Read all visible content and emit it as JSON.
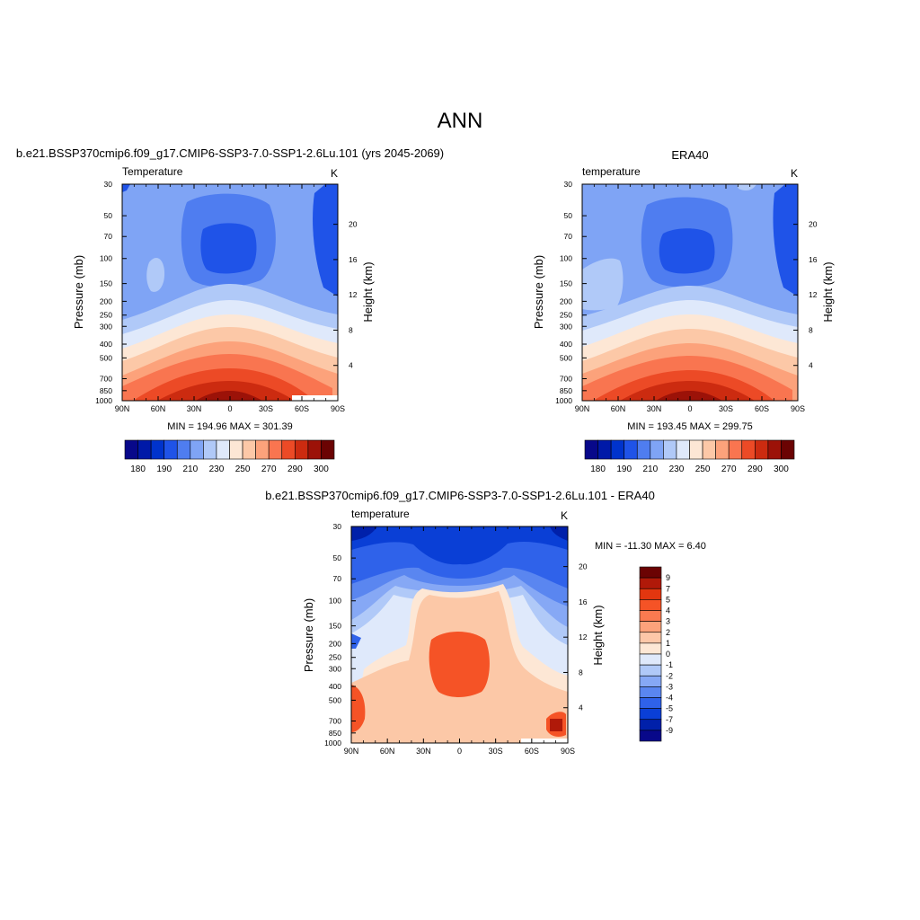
{
  "main_title": "ANN",
  "chart_data": [
    {
      "type": "heatmap",
      "id": "model",
      "title": "b.e21.BSSP370cmip6.f09_g17.CMIP6-SSP3-7.0-SSP1-2.6Lu.101 (yrs 2045-2069)",
      "left_label": "Temperature",
      "unit": "K",
      "ylabel": "Pressure (mb)",
      "ylabel_right": "Height (km)",
      "x_ticks": [
        "90N",
        "60N",
        "30N",
        "0",
        "30S",
        "60S",
        "90S"
      ],
      "pressure_ticks": [
        30,
        50,
        70,
        100,
        150,
        200,
        250,
        300,
        400,
        500,
        700,
        850,
        1000
      ],
      "height_ticks": [
        20,
        16,
        12,
        8,
        4
      ],
      "stats": "MIN = 194.96  MAX = 301.39",
      "colorbar_labels": [
        "180",
        "190",
        "210",
        "230",
        "250",
        "270",
        "290",
        "300"
      ]
    },
    {
      "type": "heatmap",
      "id": "obs",
      "title": "ERA40",
      "left_label": "temperature",
      "unit": "K",
      "ylabel": "Pressure (mb)",
      "ylabel_right": "Height (km)",
      "x_ticks": [
        "90N",
        "60N",
        "30N",
        "0",
        "30S",
        "60S",
        "90S"
      ],
      "pressure_ticks": [
        30,
        50,
        70,
        100,
        150,
        200,
        250,
        300,
        400,
        500,
        700,
        850,
        1000
      ],
      "height_ticks": [
        20,
        16,
        12,
        8,
        4
      ],
      "stats": "MIN = 193.45  MAX = 299.75",
      "colorbar_labels": [
        "180",
        "190",
        "210",
        "230",
        "250",
        "270",
        "290",
        "300"
      ]
    },
    {
      "type": "heatmap",
      "id": "diff",
      "title": "b.e21.BSSP370cmip6.f09_g17.CMIP6-SSP3-7.0-SSP1-2.6Lu.101 - ERA40",
      "left_label": "temperature",
      "unit": "K",
      "ylabel": "Pressure (mb)",
      "ylabel_right": "Height (km)",
      "x_ticks": [
        "90N",
        "60N",
        "30N",
        "0",
        "30S",
        "60S",
        "90S"
      ],
      "pressure_ticks": [
        30,
        50,
        70,
        100,
        150,
        200,
        250,
        300,
        400,
        500,
        700,
        850,
        1000
      ],
      "height_ticks": [
        20,
        16,
        12,
        8,
        4
      ],
      "stats": "MIN = -11.30  MAX =   6.40",
      "colorbar_labels": [
        "9",
        "7",
        "5",
        "4",
        "3",
        "2",
        "1",
        "0",
        "-1",
        "-2",
        "-3",
        "-4",
        "-5",
        "-7",
        "-9"
      ]
    }
  ],
  "colors": {
    "abs_scale": [
      "#08088a",
      "#0019a8",
      "#0033cc",
      "#1f53e8",
      "#4f7df0",
      "#7fa4f5",
      "#b0c9f8",
      "#dfe9fb",
      "#fde7d5",
      "#fcc8a7",
      "#fca27b",
      "#f97550",
      "#ec4a26",
      "#cc2b10",
      "#9c1208",
      "#6b0303"
    ],
    "diff_scale": [
      "#6b0303",
      "#b01909",
      "#e3360f",
      "#f55326",
      "#fb7a50",
      "#fca27b",
      "#fdc7a8",
      "#fde7d5",
      "#dfe9fb",
      "#b0c9f8",
      "#86a8f5",
      "#5a86f0",
      "#2f62ea",
      "#0a3fd6",
      "#0020aa",
      "#08088a"
    ]
  }
}
